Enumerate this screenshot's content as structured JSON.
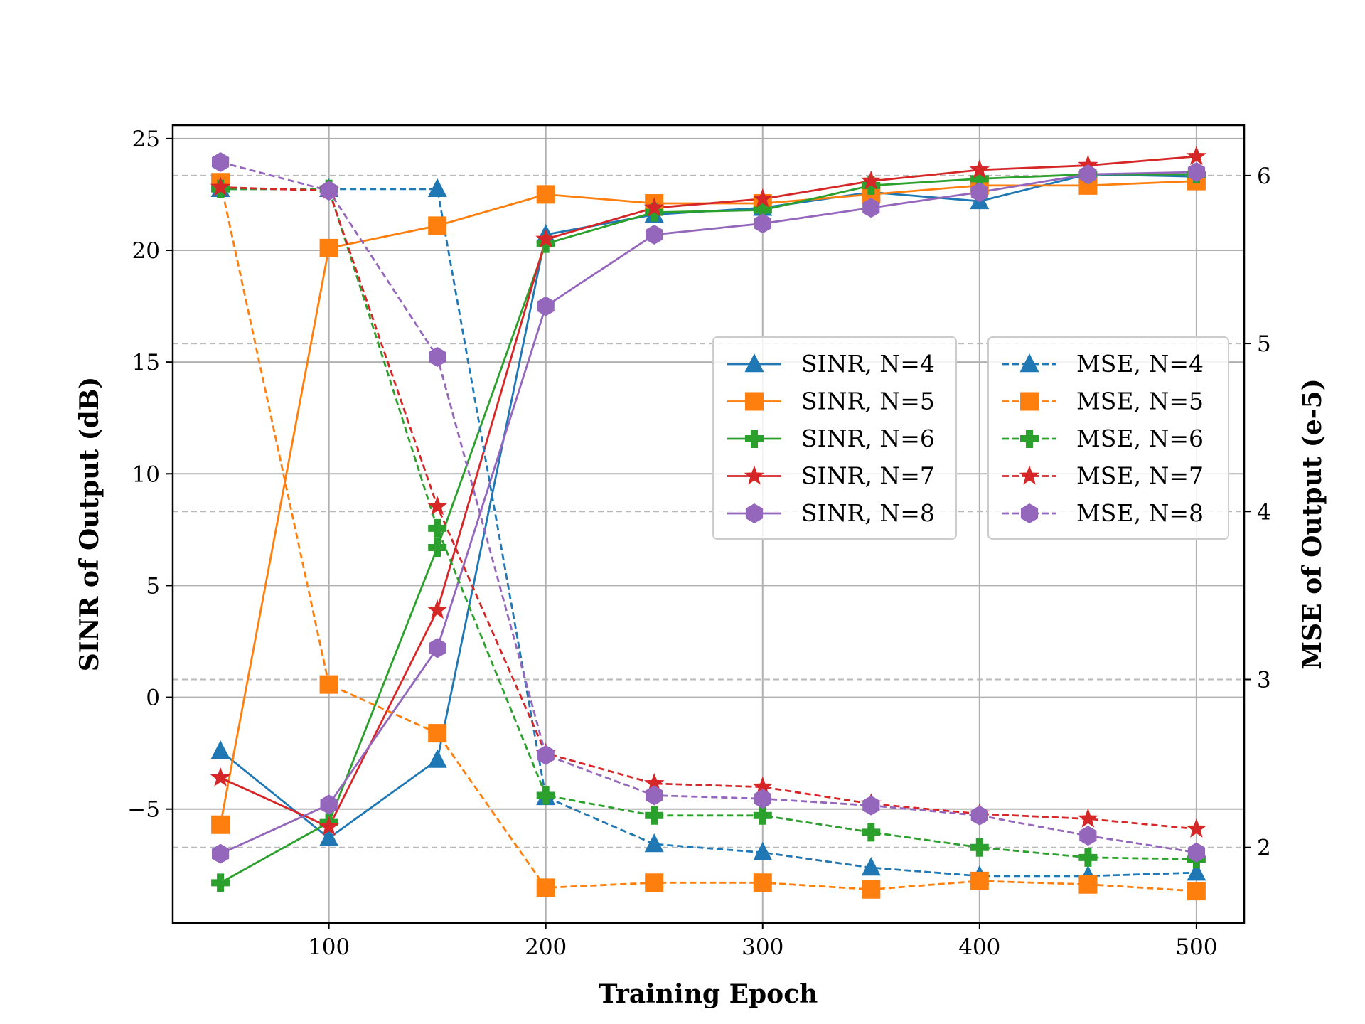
{
  "chart_data": {
    "type": "line",
    "xlabel": "Training Epoch",
    "ylabel_left": "SINR of Output (dB)",
    "ylabel_right": "MSE of Output (e-5)",
    "x": [
      50,
      100,
      150,
      200,
      250,
      300,
      350,
      400,
      450,
      500
    ],
    "xlim": [
      28,
      522
    ],
    "xticks": [
      100,
      200,
      300,
      400,
      500
    ],
    "ylim_left": [
      -10.1,
      25.6
    ],
    "yticks_left": [
      25,
      20,
      15,
      10,
      5,
      0,
      -5
    ],
    "ytick_labels_left": [
      "25",
      "20",
      "15",
      "10",
      "5",
      "0",
      "−5"
    ],
    "ylim_right": [
      1.55,
      6.3
    ],
    "yticks_right": [
      6,
      5,
      4,
      3,
      2
    ],
    "ytick_labels_right": [
      "6",
      "5",
      "4",
      "3",
      "2"
    ],
    "grid": true,
    "legend_left": "center-right",
    "legend_right": "center-right",
    "series": [
      {
        "name": "SINR, N=4",
        "axis": "left",
        "style": "solid",
        "color": "#1f77b4",
        "marker": "triangle",
        "values": [
          -2.4,
          -6.3,
          -2.8,
          20.7,
          21.6,
          21.9,
          22.6,
          22.2,
          23.4,
          23.3
        ]
      },
      {
        "name": "SINR, N=5",
        "axis": "left",
        "style": "solid",
        "color": "#ff7f0e",
        "marker": "square",
        "values": [
          -5.7,
          20.1,
          21.1,
          22.5,
          22.1,
          22.1,
          22.5,
          22.9,
          22.9,
          23.1
        ]
      },
      {
        "name": "SINR, N=6",
        "axis": "left",
        "style": "solid",
        "color": "#2ca02c",
        "marker": "plus",
        "values": [
          -8.3,
          -5.6,
          6.7,
          20.3,
          21.7,
          21.8,
          22.9,
          23.2,
          23.4,
          23.4
        ]
      },
      {
        "name": "SINR, N=7",
        "axis": "left",
        "style": "solid",
        "color": "#d62728",
        "marker": "star",
        "values": [
          -3.6,
          -5.8,
          3.9,
          20.5,
          21.9,
          22.3,
          23.1,
          23.6,
          23.8,
          24.2
        ]
      },
      {
        "name": "SINR, N=8",
        "axis": "left",
        "style": "solid",
        "color": "#9467bd",
        "marker": "hexagon",
        "values": [
          -7.0,
          -4.8,
          2.2,
          17.5,
          20.7,
          21.2,
          21.9,
          22.6,
          23.4,
          23.5
        ]
      },
      {
        "name": "MSE, N=4",
        "axis": "right",
        "style": "dashed",
        "color": "#1f77b4",
        "marker": "triangle",
        "values": [
          5.92,
          5.92,
          5.92,
          2.3,
          2.02,
          1.97,
          1.88,
          1.83,
          1.83,
          1.85
        ]
      },
      {
        "name": "MSE, N=5",
        "axis": "right",
        "style": "dashed",
        "color": "#ff7f0e",
        "marker": "square",
        "values": [
          5.96,
          2.97,
          2.68,
          1.76,
          1.79,
          1.79,
          1.75,
          1.8,
          1.78,
          1.74
        ]
      },
      {
        "name": "MSE, N=6",
        "axis": "right",
        "style": "dashed",
        "color": "#2ca02c",
        "marker": "plus",
        "values": [
          5.92,
          5.92,
          3.9,
          2.31,
          2.19,
          2.19,
          2.09,
          2.0,
          1.94,
          1.93
        ]
      },
      {
        "name": "MSE, N=7",
        "axis": "right",
        "style": "dashed",
        "color": "#d62728",
        "marker": "star",
        "values": [
          5.93,
          5.91,
          4.03,
          2.56,
          2.38,
          2.36,
          2.26,
          2.2,
          2.17,
          2.11
        ]
      },
      {
        "name": "MSE, N=8",
        "axis": "right",
        "style": "dashed",
        "color": "#9467bd",
        "marker": "hexagon",
        "values": [
          6.08,
          5.91,
          4.92,
          2.55,
          2.31,
          2.29,
          2.25,
          2.19,
          2.07,
          1.97
        ]
      }
    ]
  }
}
